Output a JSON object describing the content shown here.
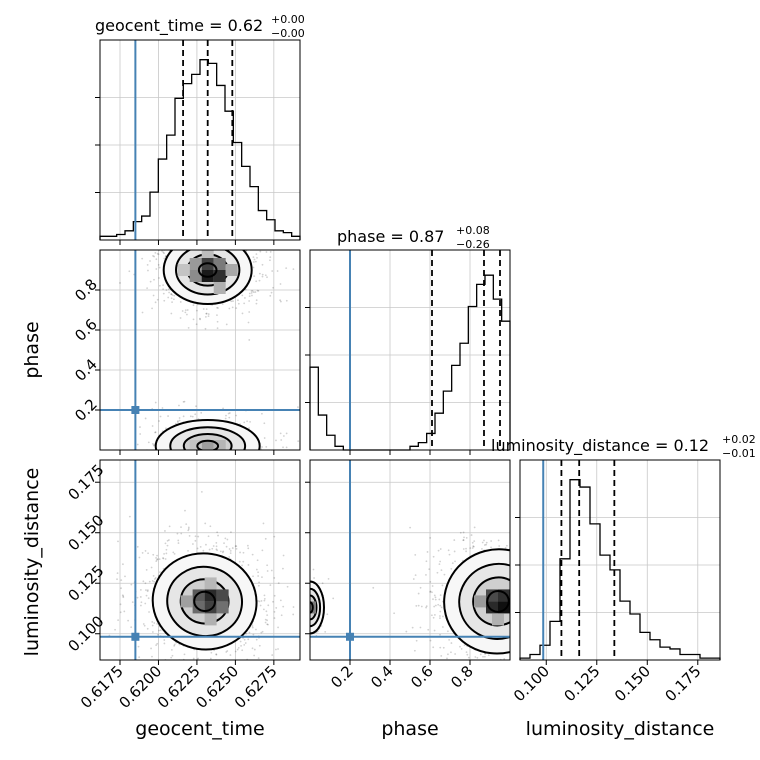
{
  "chart_data": {
    "type": "corner",
    "parameters": [
      {
        "key": "geocent_time",
        "label": "geocent_time",
        "title": {
          "text": "geocent_time = 0.62",
          "sup": "+0.00",
          "sub": "−0.00"
        },
        "range": [
          0.6162,
          0.6292
        ],
        "ticks": [
          0.6175,
          0.62,
          0.6225,
          0.625,
          0.6275
        ],
        "tick_labels": [
          "0.6175",
          "0.6200",
          "0.6225",
          "0.6250",
          "0.6275"
        ],
        "truth": 0.6185,
        "quantiles": [
          0.6216,
          0.6232,
          0.6248
        ],
        "hist": [
          0.02,
          0.02,
          0.03,
          0.05,
          0.1,
          0.13,
          0.26,
          0.44,
          0.57,
          0.77,
          0.85,
          0.9,
          0.98,
          0.96,
          0.84,
          0.7,
          0.53,
          0.4,
          0.29,
          0.16,
          0.11,
          0.05,
          0.04,
          0.02
        ],
        "hist_ymax": 1.0
      },
      {
        "key": "phase",
        "label": "phase",
        "title": {
          "text": "phase = 0.87",
          "sup": "+0.08",
          "sub": "−0.26"
        },
        "range": [
          0.0,
          1.0
        ],
        "ticks": [
          0.2,
          0.4,
          0.6,
          0.8
        ],
        "tick_labels": [
          "0.2",
          "0.4",
          "0.6",
          "0.8"
        ],
        "truth": 0.2,
        "quantiles": [
          0.61,
          0.87,
          0.95
        ],
        "hist": [
          0.45,
          0.19,
          0.08,
          0.02,
          0.0,
          0.0,
          0.0,
          0.0,
          0.0,
          0.0,
          0.0,
          0.0,
          0.02,
          0.04,
          0.09,
          0.2,
          0.32,
          0.46,
          0.58,
          0.78,
          0.9,
          0.95,
          0.82,
          0.7
        ],
        "hist_ymax": 1.0
      },
      {
        "key": "luminosity_distance",
        "label": "luminosity_distance",
        "title": {
          "text": "luminosity_distance = 0.12",
          "sup": "+0.02",
          "sub": "−0.01"
        },
        "range": [
          0.087,
          0.186
        ],
        "ticks": [
          0.1,
          0.125,
          0.15,
          0.175
        ],
        "tick_labels": [
          "0.100",
          "0.125",
          "0.150",
          "0.175"
        ],
        "truth": 0.0985,
        "quantiles": [
          0.1075,
          0.1163,
          0.1337
        ],
        "hist": [
          0.01,
          0.03,
          0.08,
          0.21,
          0.55,
          0.98,
          0.94,
          0.74,
          0.57,
          0.49,
          0.32,
          0.25,
          0.15,
          0.11,
          0.07,
          0.06,
          0.03,
          0.03,
          0.01,
          0.01
        ],
        "hist_ymax": 1.0
      }
    ],
    "panel_y_labels": {
      "phase": [
        "0.2",
        "0.4",
        "0.6",
        "0.8"
      ],
      "luminosity_distance": [
        "0.100",
        "0.125",
        "0.150",
        "0.175"
      ]
    },
    "joint_modes": [
      {
        "x": "geocent_time",
        "y": "phase",
        "centers": [
          [
            0.6232,
            0.9
          ],
          [
            0.6232,
            0.03
          ]
        ]
      },
      {
        "x": "geocent_time",
        "y": "luminosity_distance",
        "centers": [
          [
            0.6232,
            0.115
          ]
        ]
      },
      {
        "x": "phase",
        "y": "luminosity_distance",
        "centers": [
          [
            0.93,
            0.115
          ],
          [
            0.0,
            0.113
          ]
        ]
      }
    ],
    "truth_color": "#4682b4",
    "contour_color": "#000000",
    "grid": true
  }
}
